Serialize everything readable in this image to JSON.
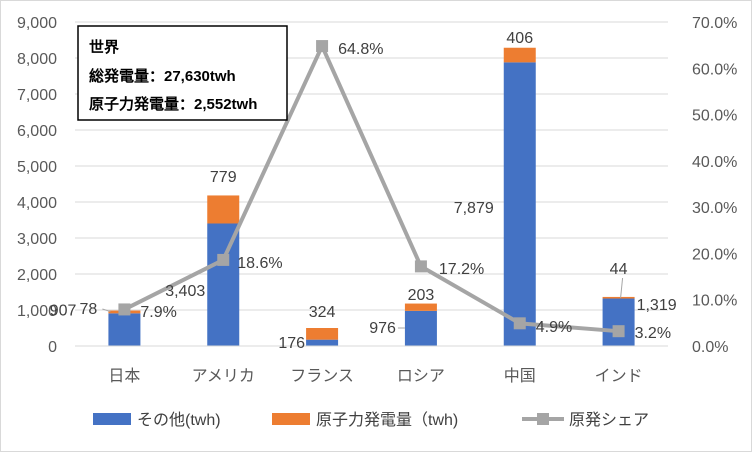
{
  "chart_data": {
    "type": "bar",
    "categories": [
      "日本",
      "アメリカ",
      "フランス",
      "ロシア",
      "中国",
      "インド"
    ],
    "series": [
      {
        "name": "その他(twh)",
        "kind": "bar",
        "axis": "left",
        "color": "#4472C4",
        "values": [
          907,
          3403,
          176,
          976,
          7879,
          1319
        ],
        "labels": [
          "907",
          "3,403",
          "176",
          "976",
          "7,879",
          "1,319"
        ]
      },
      {
        "name": "原子力発電量（twh)",
        "kind": "bar",
        "axis": "left",
        "color": "#ED7D31",
        "values": [
          78,
          779,
          324,
          203,
          406,
          44
        ],
        "labels": [
          "78",
          "779",
          "324",
          "203",
          "406",
          "44"
        ]
      },
      {
        "name": "原発シェア",
        "kind": "line",
        "axis": "right",
        "color": "#A5A5A5",
        "values": [
          7.9,
          18.6,
          64.8,
          17.2,
          4.9,
          3.2
        ],
        "labels": [
          "7.9%",
          "18.6%",
          "64.8%",
          "17.2%",
          "4.9%",
          "3.2%"
        ]
      }
    ],
    "y_left": {
      "min": 0,
      "max": 9000,
      "ticks": [
        "0",
        "1,000",
        "2,000",
        "3,000",
        "4,000",
        "5,000",
        "6,000",
        "7,000",
        "8,000",
        "9,000"
      ]
    },
    "y_right": {
      "min": 0,
      "max": 70,
      "unit": "%",
      "ticks": [
        "0.0%",
        "10.0%",
        "20.0%",
        "30.0%",
        "40.0%",
        "50.0%",
        "60.0%",
        "70.0%"
      ]
    },
    "stacked": true,
    "grid": true,
    "legend_position": "bottom",
    "annotation_box": {
      "lines": [
        "世界",
        "総発電量：27,630twh",
        "原子力発電量：2,552twh"
      ]
    }
  }
}
